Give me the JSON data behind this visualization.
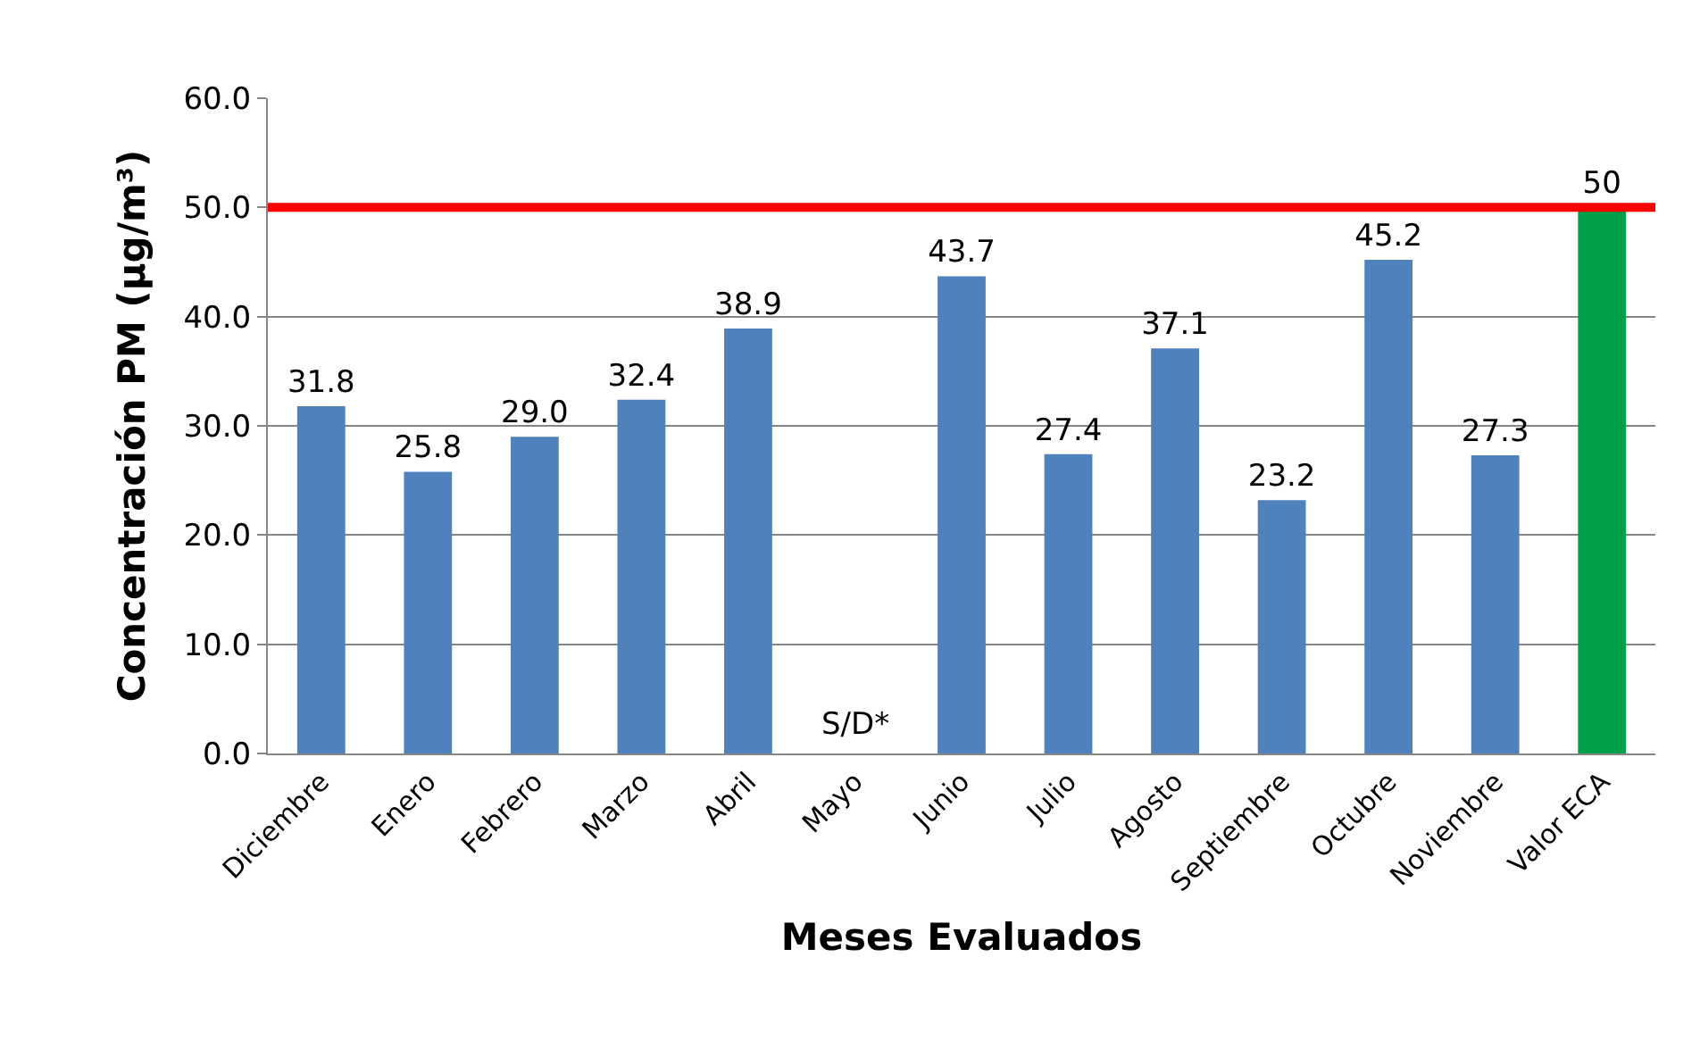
{
  "chart_data": {
    "type": "bar",
    "xlabel": "Meses Evaluados",
    "ylabel": "Concentración PM (µg/m³)",
    "categories": [
      "Diciembre",
      "Enero",
      "Febrero",
      "Marzo",
      "Abril",
      "Mayo",
      "Junio",
      "Julio",
      "Agosto",
      "Septiembre",
      "Octubre",
      "Noviembre",
      "Valor ECA"
    ],
    "values": [
      31.8,
      25.8,
      29.0,
      32.4,
      38.9,
      null,
      43.7,
      27.4,
      37.1,
      23.2,
      45.2,
      27.3,
      50
    ],
    "value_labels": [
      "31.8",
      "25.8",
      "29.0",
      "32.4",
      "38.9",
      null,
      "43.7",
      "27.4",
      "37.1",
      "23.2",
      "45.2",
      "27.3",
      "50"
    ],
    "colors": [
      "#4f81bd",
      "#4f81bd",
      "#4f81bd",
      "#4f81bd",
      "#4f81bd",
      "#4f81bd",
      "#4f81bd",
      "#4f81bd",
      "#4f81bd",
      "#4f81bd",
      "#4f81bd",
      "#4f81bd",
      "#00a04a"
    ],
    "annotations": [
      "S/D*"
    ],
    "ref_lines": [
      {
        "axis": "y",
        "value": 50,
        "color": "#ff0000"
      }
    ],
    "ylim": [
      0,
      60
    ],
    "yticks": [
      {
        "value": 0,
        "label": "0.0"
      },
      {
        "value": 10,
        "label": "10.0"
      },
      {
        "value": 20,
        "label": "20.0"
      },
      {
        "value": 30,
        "label": "30.0"
      },
      {
        "value": 40,
        "label": "40.0"
      },
      {
        "value": 50,
        "label": "50.0"
      },
      {
        "value": 60,
        "label": "60.0"
      }
    ],
    "grid": "y"
  }
}
